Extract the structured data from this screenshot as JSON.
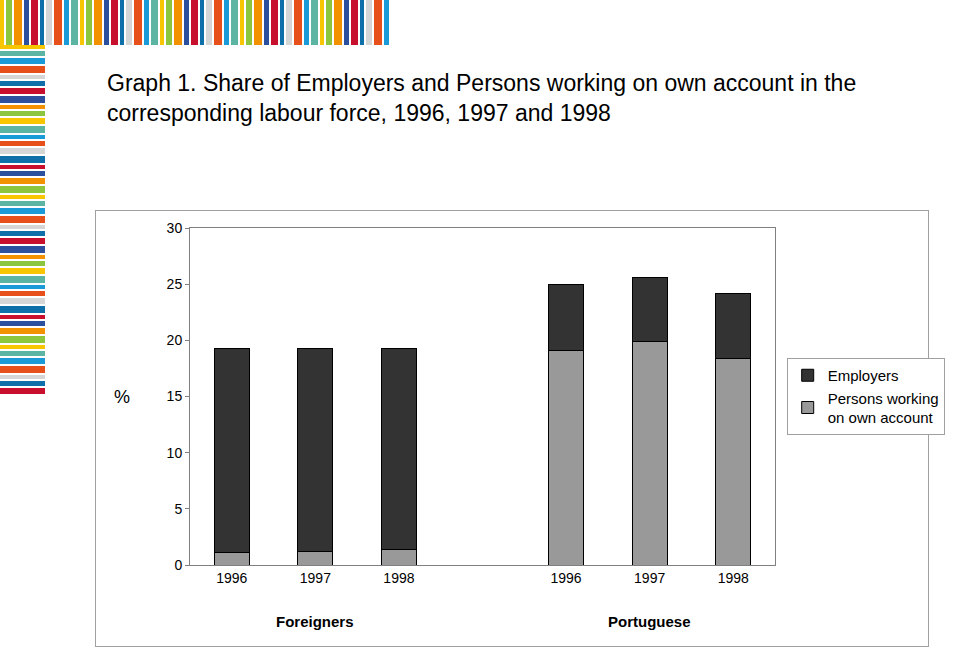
{
  "chart_data": {
    "type": "bar",
    "title": "Graph 1. Share of Employers and Persons working on own account in the corresponding labour force, 1996, 1997 and 1998",
    "ylabel": "%",
    "categories": [
      "1996",
      "1997",
      "1998",
      null,
      "1996",
      "1997",
      "1998"
    ],
    "group_labels": [
      "Foreigners",
      "Portuguese"
    ],
    "series": [
      {
        "name": "Persons working on own account",
        "color": "#999999",
        "values": [
          1.1,
          1.2,
          1.4,
          null,
          19.1,
          19.9,
          18.4
        ]
      },
      {
        "name": "Employers",
        "color": "#333333",
        "values": [
          18.2,
          18.1,
          17.9,
          null,
          5.9,
          5.7,
          5.8
        ]
      }
    ],
    "stacked": true,
    "ylim": [
      0,
      30
    ],
    "yticks": [
      0,
      5,
      10,
      15,
      20,
      25,
      30
    ],
    "grid": false,
    "legend": "right"
  }
}
